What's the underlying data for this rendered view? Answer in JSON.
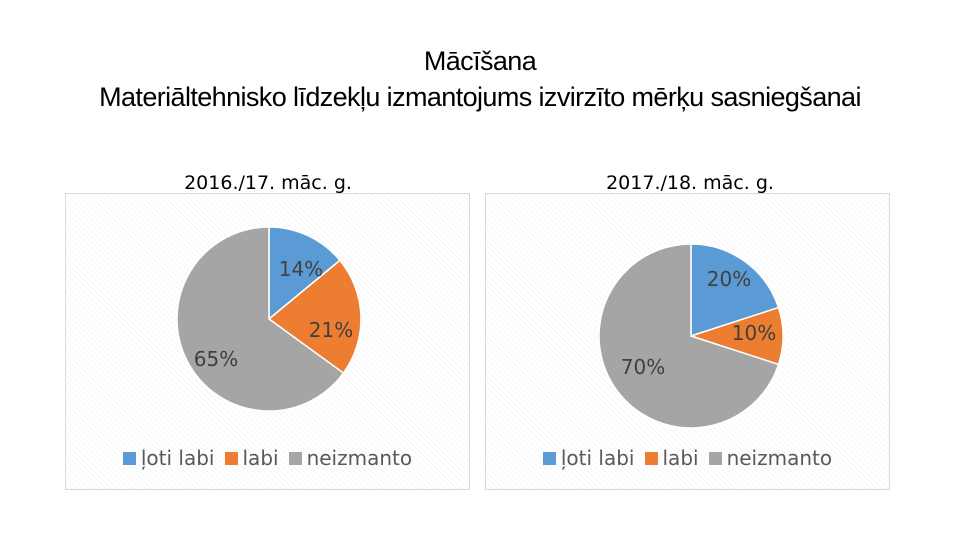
{
  "title": {
    "line1": "Mācīšana",
    "line2": "Materiāltehnisko līdzekļu izmantojums izvirzīto mērķu sasniegšanai"
  },
  "legend": [
    "ļoti labi",
    "labi",
    "neizmanto"
  ],
  "colors": {
    "loti_labi": "#5b9bd5",
    "labi": "#ed7d31",
    "neizmanto": "#a5a5a5"
  },
  "chart_data": [
    {
      "type": "pie",
      "title": "2016./17. māc. g.",
      "categories": [
        "ļoti labi",
        "labi",
        "neizmanto"
      ],
      "values": [
        14,
        21,
        65
      ],
      "labels": [
        "14%",
        "21%",
        "65%"
      ],
      "legend_position": "bottom"
    },
    {
      "type": "pie",
      "title": "2017./18. māc. g.",
      "categories": [
        "ļoti labi",
        "labi",
        "neizmanto"
      ],
      "values": [
        20,
        10,
        70
      ],
      "labels": [
        "20%",
        "10%",
        "70%"
      ],
      "legend_position": "bottom"
    }
  ]
}
